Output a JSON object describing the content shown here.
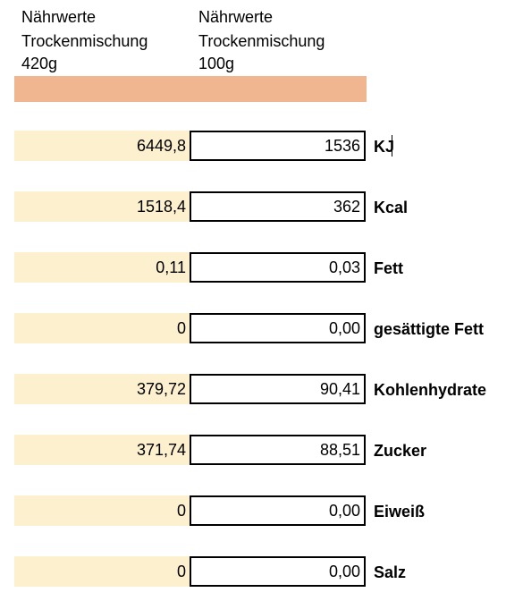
{
  "colors": {
    "header_bar": "#efb68f",
    "input_cell": "#fdf0cf",
    "border": "#000000"
  },
  "header": {
    "left": {
      "line1": "Nährwerte",
      "line2": "Trockenmischung",
      "line3": "420g"
    },
    "right": {
      "line1": "Nährwerte",
      "line2": "Trockenmischung",
      "line3": "100g"
    }
  },
  "rows": [
    {
      "value_420g": "6449,8",
      "value_100g": "1536",
      "label": "KJ"
    },
    {
      "value_420g": "1518,4",
      "value_100g": "362",
      "label": "Kcal"
    },
    {
      "value_420g": "0,11",
      "value_100g": "0,03",
      "label": "Fett"
    },
    {
      "value_420g": "0",
      "value_100g": "0,00",
      "label": "gesättigte Fett"
    },
    {
      "value_420g": "379,72",
      "value_100g": "90,41",
      "label": "Kohlenhydrate"
    },
    {
      "value_420g": "371,74",
      "value_100g": "88,51",
      "label": "Zucker"
    },
    {
      "value_420g": "0",
      "value_100g": "0,00",
      "label": "Eiweiß"
    },
    {
      "value_420g": "0",
      "value_100g": "0,00",
      "label": "Salz"
    }
  ]
}
